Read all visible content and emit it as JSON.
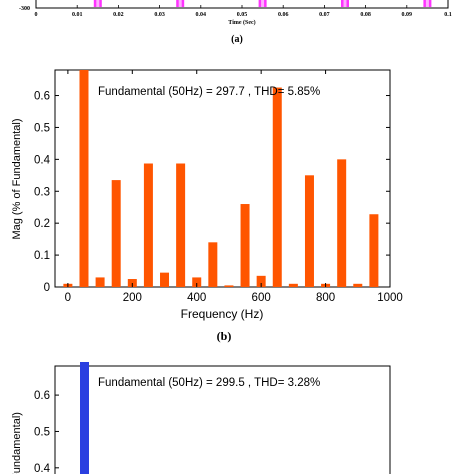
{
  "panel_a": {
    "caption": "(a)",
    "ytick_bottom": "-300",
    "xlabel": "Time (Sec)",
    "xticks": [
      "0",
      "0.01",
      "0.02",
      "0.03",
      "0.04",
      "0.05",
      "0.06",
      "0.07",
      "0.08",
      "0.09",
      "0.1"
    ],
    "pulse_times": [
      0.015,
      0.035,
      0.055,
      0.075,
      0.095
    ],
    "pulse_color": "#ff33ff"
  },
  "panel_b": {
    "caption": "(b)",
    "annotation": "Fundamental (50Hz) = 297.7 , THD= 5.85%",
    "bar_color": "#ff5500"
  },
  "panel_c": {
    "annotation": "Fundamental (50Hz) = 299.5 , THD= 3.28%",
    "ylabel": "Fundamental)",
    "bar_color": "#2a3fe0",
    "yticks": [
      "0.6",
      "0.5",
      "0.4"
    ]
  },
  "chart_data": [
    {
      "type": "line",
      "xlabel": "Time (Sec)",
      "ylabel": "",
      "xlim": [
        0,
        0.1
      ],
      "xticks": [
        0,
        0.01,
        0.02,
        0.03,
        0.04,
        0.05,
        0.06,
        0.07,
        0.08,
        0.09,
        0.1
      ],
      "ytick_bottom": -300
    },
    {
      "type": "bar",
      "xlabel": "Frequency (Hz)",
      "ylabel": "Mag (% of Fundamental)",
      "xlim": [
        -40,
        1000
      ],
      "ylim": [
        0,
        0.68
      ],
      "xticks": [
        0,
        200,
        400,
        600,
        800,
        1000
      ],
      "yticks": [
        0,
        0.1,
        0.2,
        0.3,
        0.4,
        0.5,
        0.6
      ],
      "x": [
        0,
        50,
        100,
        150,
        200,
        250,
        300,
        350,
        400,
        450,
        500,
        550,
        600,
        650,
        700,
        750,
        800,
        850,
        900,
        950
      ],
      "values": [
        0.01,
        0.68,
        0.03,
        0.335,
        0.025,
        0.387,
        0.045,
        0.387,
        0.03,
        0.14,
        0.005,
        0.26,
        0.035,
        0.625,
        0.01,
        0.35,
        0.01,
        0.4,
        0.01,
        0.228
      ],
      "annotation": "Fundamental (50Hz) = 297.7 , THD= 5.85%"
    },
    {
      "type": "bar",
      "ylabel": "Fundamental)",
      "ylim": [
        0.35,
        0.68
      ],
      "yticks": [
        0.4,
        0.5,
        0.6
      ],
      "x": [
        50
      ],
      "values": [
        0.68
      ],
      "annotation": "Fundamental (50Hz) = 299.5 , THD= 3.28%"
    }
  ]
}
